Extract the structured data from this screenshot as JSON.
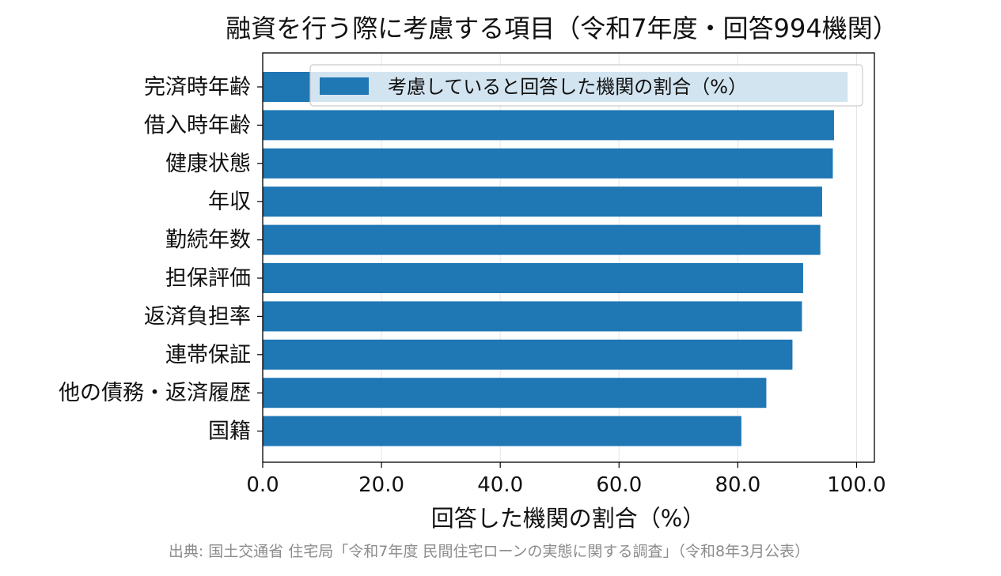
{
  "chart_data": {
    "type": "bar",
    "orientation": "horizontal",
    "title": "融資を行う際に考慮する項目（令和7年度・回答994機関）",
    "xlabel": "回答した機関の割合（%）",
    "ylabel": "",
    "xlim": [
      0,
      103
    ],
    "xticks": [
      "0.0",
      "20.0",
      "40.0",
      "60.0",
      "80.0",
      "100.0"
    ],
    "xgrid": true,
    "legend": {
      "position": "top-right",
      "label": "考慮していると回答した機関の割合（%）"
    },
    "categories": [
      "完済時年齢",
      "借入時年齢",
      "健康状態",
      "年収",
      "勤続年数",
      "担保評価",
      "返済負担率",
      "連帯保証",
      "他の債務・返済履歴",
      "国籍"
    ],
    "series": [
      {
        "name": "考慮していると回答した機関の割合（%）",
        "values": [
          98.5,
          96.2,
          96.0,
          94.2,
          93.9,
          91.0,
          90.8,
          89.2,
          84.8,
          80.6
        ]
      }
    ],
    "colors": {
      "bar": "#1f77b4",
      "legend_bg": "#d0e3ef",
      "grid": "#e6e6e6"
    }
  },
  "source": "出典: 国土交通省 住宅局「令和7年度 民間住宅ローンの実態に関する調査」（令和8年3月公表）"
}
